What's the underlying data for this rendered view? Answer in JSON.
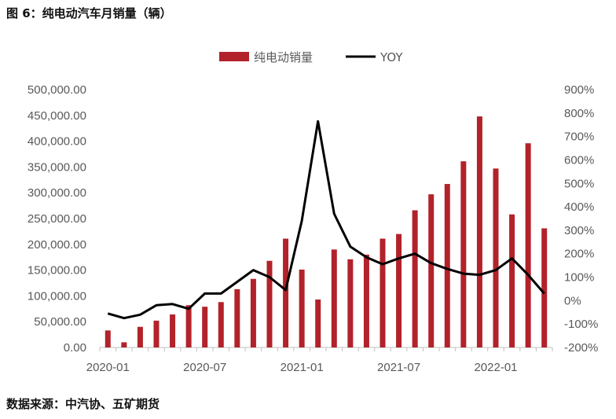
{
  "figure": {
    "title": "图 6：纯电动汽车月销量（辆）",
    "source": "数据来源：中汽协、五矿期货"
  },
  "chart_data": {
    "type": "bar",
    "months": [
      "2020-01",
      "2020-02",
      "2020-03",
      "2020-04",
      "2020-05",
      "2020-06",
      "2020-07",
      "2020-08",
      "2020-09",
      "2020-10",
      "2020-11",
      "2020-12",
      "2021-01",
      "2021-02",
      "2021-03",
      "2021-04",
      "2021-05",
      "2021-06",
      "2021-07",
      "2021-08",
      "2021-09",
      "2021-10",
      "2021-11",
      "2021-12",
      "2022-01",
      "2022-02",
      "2022-03",
      "2022-04"
    ],
    "x_tick_labels": [
      "2020-01",
      "2020-07",
      "2021-01",
      "2021-07",
      "2022-01"
    ],
    "series": [
      {
        "name": "纯电动销量",
        "type": "bar",
        "axis": "left",
        "color": "#b2222a",
        "values": [
          33000,
          10000,
          40000,
          52000,
          64000,
          82000,
          79000,
          88000,
          113000,
          133000,
          168000,
          211000,
          151000,
          93000,
          190000,
          171000,
          180000,
          211000,
          220000,
          266000,
          297000,
          317000,
          361000,
          448000,
          347000,
          258000,
          396000,
          231000
        ]
      },
      {
        "name": "YOY",
        "type": "line",
        "axis": "right",
        "color": "#000000",
        "values": [
          -55,
          -75,
          -60,
          -20,
          -15,
          -35,
          30,
          30,
          80,
          130,
          100,
          45,
          340,
          765,
          370,
          230,
          185,
          155,
          180,
          200,
          160,
          135,
          115,
          110,
          130,
          180,
          110,
          30
        ]
      }
    ],
    "y_left": {
      "min": 0,
      "max": 500000,
      "step": 50000,
      "tick_labels": [
        "0.00",
        "50,000.00",
        "100,000.00",
        "150,000.00",
        "200,000.00",
        "250,000.00",
        "300,000.00",
        "350,000.00",
        "400,000.00",
        "450,000.00",
        "500,000.00"
      ]
    },
    "y_right": {
      "min": -200,
      "max": 900,
      "step": 100,
      "tick_labels": [
        "-200%",
        "-100%",
        "0%",
        "100%",
        "200%",
        "300%",
        "400%",
        "500%",
        "600%",
        "700%",
        "800%",
        "900%"
      ]
    },
    "legend_position": "top",
    "grid": false
  }
}
